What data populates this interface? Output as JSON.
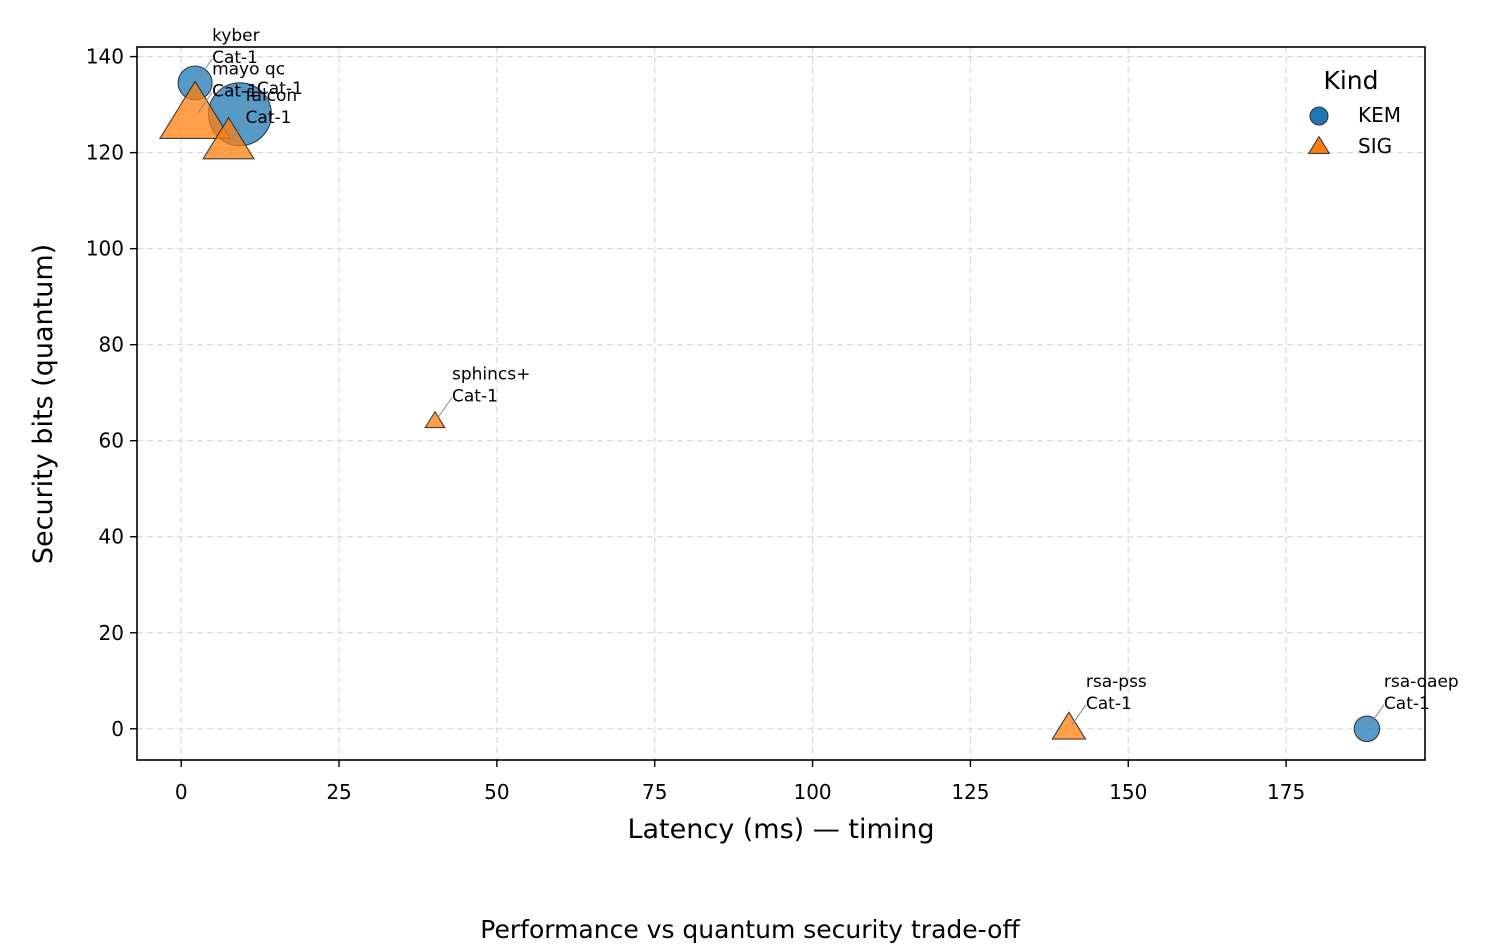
{
  "chart_data": {
    "type": "scatter",
    "caption": "Performance vs quantum security trade-off",
    "xlabel": "Latency (ms) — timing",
    "ylabel": "Security bits (quantum)",
    "xlim": [
      -7,
      197
    ],
    "ylim": [
      -6.5,
      142
    ],
    "x_ticks": [
      0,
      25,
      50,
      75,
      100,
      125,
      150,
      175
    ],
    "y_ticks": [
      0,
      20,
      40,
      60,
      80,
      100,
      120,
      140
    ],
    "grid": true,
    "legend": {
      "title": "Kind",
      "placement": "top-right",
      "entries": [
        {
          "label": "KEM",
          "marker": "circle",
          "color": "#1f77b4"
        },
        {
          "label": "SIG",
          "marker": "triangle",
          "color": "#ff7f0e"
        }
      ]
    },
    "series": [
      {
        "name": "KEM",
        "marker": "circle",
        "color": "#1f77b4",
        "points": [
          {
            "label": "kyber",
            "category": "Cat-1",
            "x": 2.2,
            "y": 134.5,
            "size": 1.0
          },
          {
            "label": "rsa-oaep",
            "category": "Cat-1",
            "x": 187.8,
            "y": 0,
            "size": 0.75
          },
          {
            "label": "",
            "category": "Cat-1",
            "x": 9.3,
            "y": 128,
            "size": 1.85
          }
        ]
      },
      {
        "name": "SIG",
        "marker": "triangle",
        "color": "#ff7f0e",
        "points": [
          {
            "label": "mayo qc",
            "category": "Cat-1",
            "x": 2.2,
            "y": 127.5,
            "size": 1.8
          },
          {
            "label": "falcon",
            "category": "Cat-1",
            "x": 7.5,
            "y": 122,
            "size": 1.3
          },
          {
            "label": "sphincs+",
            "category": "Cat-1",
            "x": 40.2,
            "y": 64,
            "size": 0.5
          },
          {
            "label": "rsa-pss",
            "category": "Cat-1",
            "x": 140.6,
            "y": 0,
            "size": 0.85
          }
        ]
      }
    ]
  }
}
